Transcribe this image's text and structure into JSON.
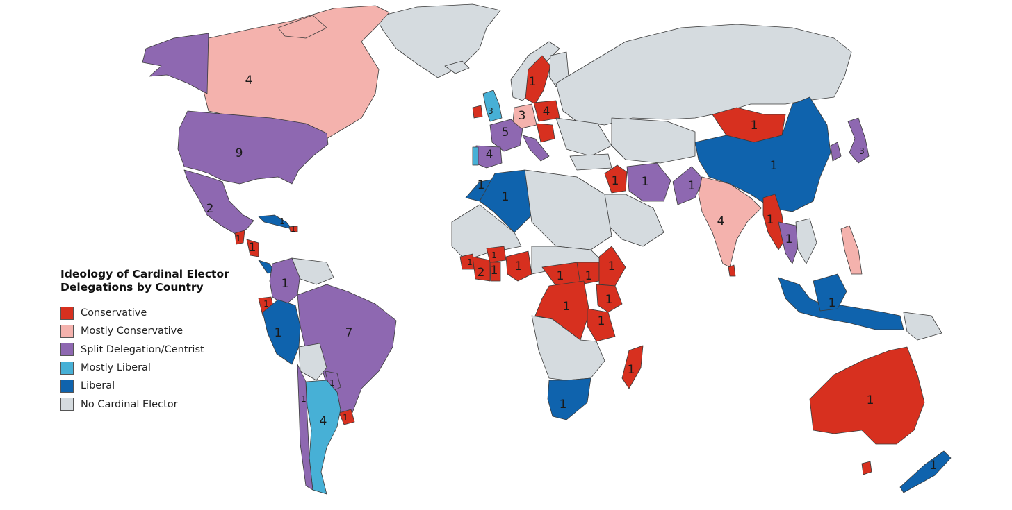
{
  "legend": {
    "title_line1": "Ideology of Cardinal Elector",
    "title_line2": "Delegations by Country",
    "items": [
      {
        "label": "Conservative",
        "color": "#d7301f"
      },
      {
        "label": "Mostly Conservative",
        "color": "#f4b2ad"
      },
      {
        "label": "Split Delegation/Centrist",
        "color": "#8e68b1"
      },
      {
        "label": "Mostly Liberal",
        "color": "#47b0d6"
      },
      {
        "label": "Liberal",
        "color": "#0f63ad"
      },
      {
        "label": "No Cardinal Elector",
        "color": "#d5dbdf"
      }
    ]
  },
  "counts": {
    "canada": "4",
    "usa": "9",
    "mexico": "2",
    "colombia": "1",
    "peru": "1",
    "brazil": "7",
    "argentina": "4",
    "ecuador": "1",
    "uruguay": "1",
    "paraguay": "1",
    "chile": "1",
    "france": "5",
    "spain": "4",
    "germany": "3",
    "poland": "4",
    "sweden": "1",
    "morocco": "1",
    "algeria": "1",
    "iraq": "1",
    "iran": "1",
    "pakistan": "1",
    "india": "4",
    "mongolia": "1",
    "china": "1",
    "japan": "3",
    "myanmar": "1",
    "thailand": "1",
    "cote_divoire": "2",
    "burkina": "1",
    "ghana": "1",
    "guinea": "1",
    "nigeria": "1",
    "car": "1",
    "south_sudan": "1",
    "ethiopia": "1",
    "drc": "1",
    "kenya": "1",
    "tanzania": "1",
    "madagascar": "1",
    "south_africa": "1",
    "indonesia": "1",
    "australia": "1",
    "new_zealand": "1",
    "cuba": "1",
    "haiti": "1",
    "nicaragua": "1",
    "guatemala": "1",
    "uk": "3"
  }
}
